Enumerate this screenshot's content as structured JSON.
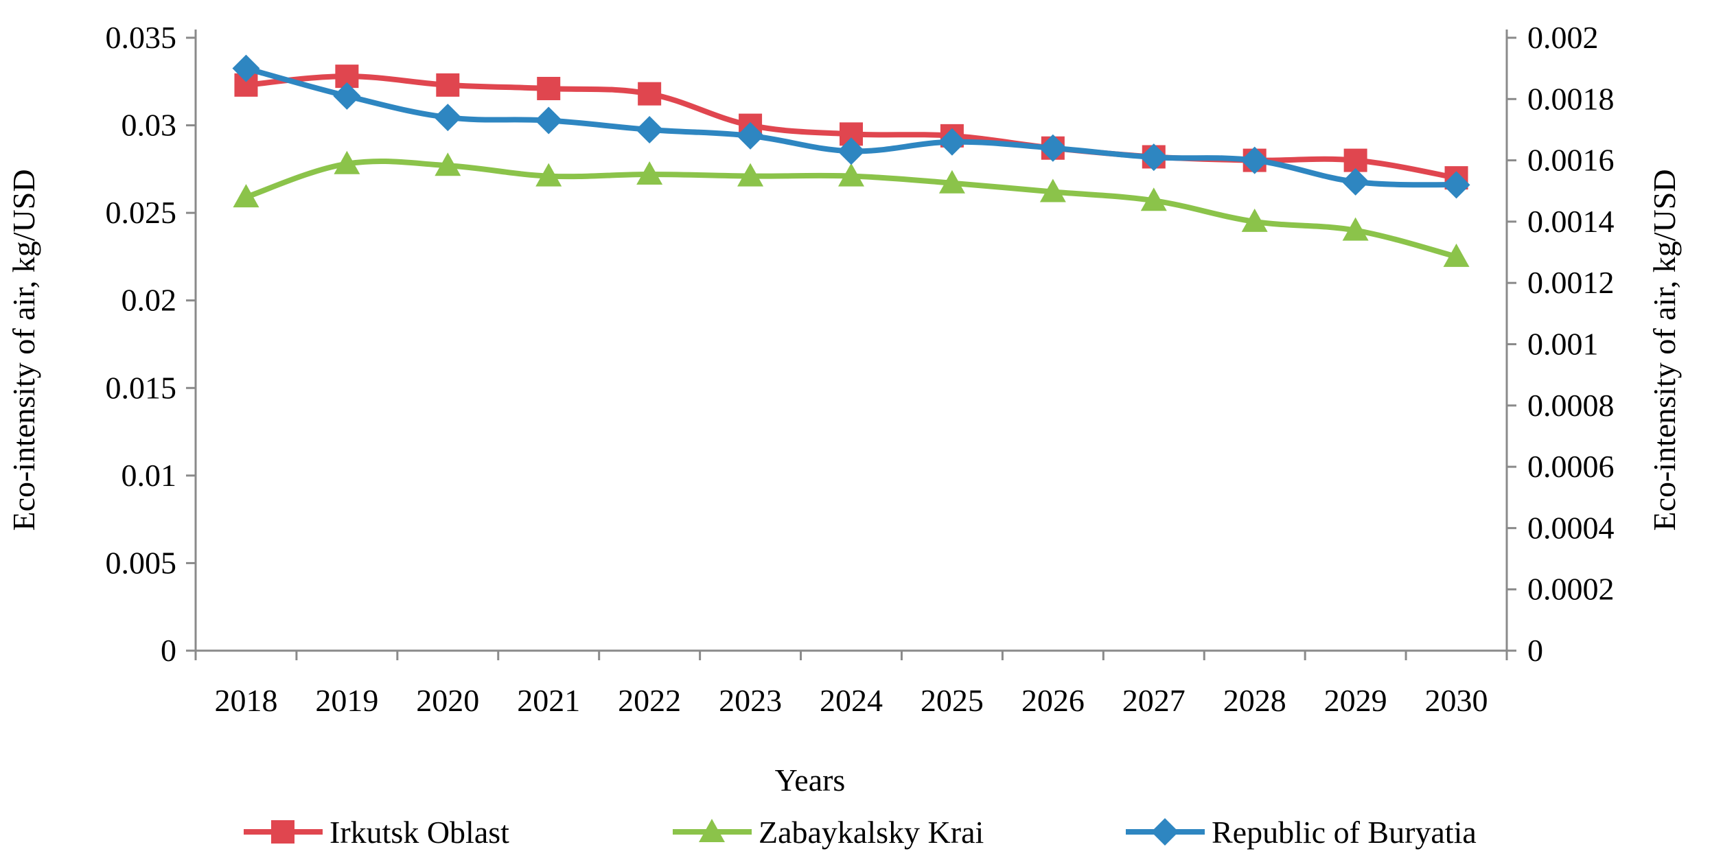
{
  "chart_data": {
    "type": "line",
    "categories": [
      "2018",
      "2019",
      "2020",
      "2021",
      "2022",
      "2023",
      "2024",
      "2025",
      "2026",
      "2027",
      "2028",
      "2029",
      "2030"
    ],
    "xlabel": "Years",
    "ylabel_left": "Eco-intensity of air, kg/USD",
    "ylabel_right": "Eco-intensity of air, kg/USD",
    "ylim_left": [
      0,
      0.035
    ],
    "ylim_right": [
      0,
      0.002
    ],
    "yticks_left": [
      "0",
      "0.005",
      "0.01",
      "0.015",
      "0.02",
      "0.025",
      "0.03",
      "0.035"
    ],
    "yticks_right": [
      "0",
      "0.0002",
      "0.0004",
      "0.0006",
      "0.0008",
      "0.001",
      "0.0012",
      "0.0014",
      "0.0016",
      "0.0018",
      "0.002"
    ],
    "grid": false,
    "legend_position": "bottom",
    "series": [
      {
        "name": "Irkutsk Oblast",
        "axis": "left",
        "marker": "square",
        "color": "#E0464F",
        "values": [
          0.0323,
          0.0328,
          0.0323,
          0.0321,
          0.0318,
          0.03,
          0.0295,
          0.0294,
          0.0287,
          0.0282,
          0.028,
          0.028,
          0.027
        ]
      },
      {
        "name": "Zabaykalsky Krai",
        "axis": "left",
        "marker": "triangle",
        "color": "#8BC34A",
        "values": [
          0.0259,
          0.0278,
          0.0277,
          0.0271,
          0.0272,
          0.0271,
          0.0271,
          0.0267,
          0.0262,
          0.0257,
          0.0245,
          0.024,
          0.0225
        ]
      },
      {
        "name": "Republic of Buryatia",
        "axis": "right",
        "marker": "diamond",
        "color": "#2E86C1",
        "values": [
          0.0019,
          0.00181,
          0.00174,
          0.00173,
          0.0017,
          0.00168,
          0.00163,
          0.00166,
          0.00164,
          0.00161,
          0.0016,
          0.00153,
          0.00152
        ]
      }
    ]
  }
}
